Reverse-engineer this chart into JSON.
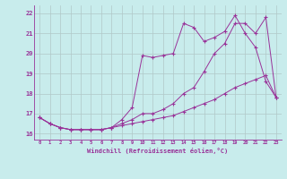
{
  "background_color": "#c8ecec",
  "grid_color": "#b0c8c8",
  "line_color": "#993399",
  "xlabel": "Windchill (Refroidissement éolien,°C)",
  "ylim": [
    15.7,
    22.4
  ],
  "xlim": [
    -0.5,
    23.5
  ],
  "yticks": [
    16,
    17,
    18,
    19,
    20,
    21,
    22
  ],
  "xticks": [
    0,
    1,
    2,
    3,
    4,
    5,
    6,
    7,
    8,
    9,
    10,
    11,
    12,
    13,
    14,
    15,
    16,
    17,
    18,
    19,
    20,
    21,
    22,
    23
  ],
  "line1_x": [
    0,
    1,
    2,
    3,
    4,
    5,
    6,
    7,
    8,
    9,
    10,
    11,
    12,
    13,
    14,
    15,
    16,
    17,
    18,
    19,
    20,
    21,
    22,
    23
  ],
  "line1_y": [
    16.8,
    16.5,
    16.3,
    16.2,
    16.2,
    16.2,
    16.2,
    16.3,
    16.4,
    16.5,
    16.6,
    16.7,
    16.8,
    16.9,
    17.1,
    17.3,
    17.5,
    17.7,
    18.0,
    18.3,
    18.5,
    18.7,
    18.9,
    17.8
  ],
  "line2_x": [
    0,
    1,
    2,
    3,
    4,
    5,
    6,
    7,
    8,
    9,
    10,
    11,
    12,
    13,
    14,
    15,
    16,
    17,
    18,
    19,
    20,
    21,
    22,
    23
  ],
  "line2_y": [
    16.8,
    16.5,
    16.3,
    16.2,
    16.2,
    16.2,
    16.2,
    16.3,
    16.7,
    17.3,
    19.9,
    19.8,
    19.9,
    20.0,
    21.5,
    21.3,
    20.6,
    20.8,
    21.1,
    21.9,
    21.0,
    20.3,
    18.6,
    17.8
  ],
  "line3_x": [
    0,
    1,
    2,
    3,
    4,
    5,
    6,
    7,
    8,
    9,
    10,
    11,
    12,
    13,
    14,
    15,
    16,
    17,
    18,
    19,
    20,
    21,
    22,
    23
  ],
  "line3_y": [
    16.8,
    16.5,
    16.3,
    16.2,
    16.2,
    16.2,
    16.2,
    16.3,
    16.5,
    16.7,
    17.0,
    17.0,
    17.2,
    17.5,
    18.0,
    18.3,
    19.1,
    20.0,
    20.5,
    21.5,
    21.5,
    21.0,
    21.8,
    17.8
  ]
}
